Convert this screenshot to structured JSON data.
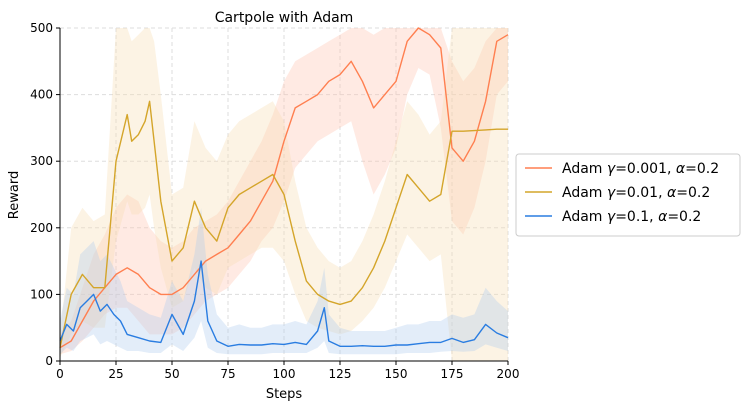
{
  "chart_data": {
    "type": "line",
    "title": "Cartpole with Adam",
    "xlabel": "Steps",
    "ylabel": "Reward",
    "xlim": [
      0,
      200
    ],
    "ylim": [
      0,
      500
    ],
    "xticks": [
      "0",
      "25",
      "50",
      "75",
      "100",
      "125",
      "150",
      "175",
      "200"
    ],
    "yticks": [
      "0",
      "100",
      "200",
      "300",
      "400",
      "500"
    ],
    "grid": true,
    "legend_position": "right-outside",
    "series": [
      {
        "name": "Adam γ=0.001, α=0.2",
        "legend": {
          "prefix": "Adam ",
          "g": "γ",
          "gv": "=0.001, ",
          "a": "α",
          "av": "=0.2"
        },
        "color": "#ff7f50",
        "band_color": "#ffc2b0",
        "band_opacity": 0.35,
        "x": [
          0,
          5,
          10,
          15,
          20,
          25,
          30,
          35,
          40,
          45,
          50,
          55,
          60,
          65,
          70,
          75,
          80,
          85,
          90,
          95,
          100,
          105,
          110,
          115,
          120,
          125,
          130,
          135,
          140,
          145,
          150,
          155,
          160,
          165,
          170,
          175,
          180,
          185,
          190,
          195,
          200
        ],
        "y": [
          20,
          30,
          60,
          90,
          110,
          130,
          140,
          130,
          110,
          100,
          100,
          110,
          130,
          150,
          160,
          170,
          190,
          210,
          240,
          270,
          330,
          380,
          390,
          400,
          420,
          430,
          450,
          420,
          380,
          400,
          420,
          480,
          500,
          490,
          470,
          320,
          300,
          330,
          390,
          480,
          490
        ],
        "lower": [
          10,
          15,
          30,
          50,
          70,
          80,
          80,
          60,
          40,
          40,
          40,
          50,
          70,
          90,
          100,
          110,
          130,
          150,
          180,
          200,
          240,
          290,
          310,
          330,
          340,
          350,
          360,
          300,
          250,
          280,
          320,
          400,
          440,
          430,
          350,
          210,
          190,
          230,
          300,
          400,
          420
        ],
        "upper": [
          40,
          60,
          110,
          160,
          190,
          230,
          250,
          240,
          200,
          180,
          170,
          180,
          200,
          210,
          220,
          240,
          270,
          300,
          330,
          370,
          420,
          450,
          460,
          470,
          480,
          490,
          500,
          500,
          490,
          500,
          500,
          500,
          500,
          500,
          500,
          450,
          420,
          440,
          480,
          500,
          500
        ]
      },
      {
        "name": "Adam γ=0.01, α=0.2",
        "legend": {
          "prefix": "Adam ",
          "g": "γ",
          "gv": "=0.01, ",
          "a": "α",
          "av": "=0.2"
        },
        "color": "#d4a52a",
        "band_color": "#f5deb3",
        "band_opacity": 0.35,
        "x": [
          0,
          5,
          10,
          15,
          20,
          25,
          30,
          32,
          35,
          38,
          40,
          42,
          45,
          50,
          55,
          60,
          65,
          70,
          75,
          80,
          85,
          90,
          95,
          100,
          105,
          110,
          115,
          120,
          125,
          130,
          135,
          140,
          145,
          150,
          155,
          160,
          165,
          170,
          175,
          180,
          185,
          190,
          195,
          200
        ],
        "y": [
          20,
          100,
          130,
          110,
          110,
          300,
          370,
          330,
          340,
          360,
          390,
          330,
          240,
          150,
          170,
          240,
          200,
          180,
          230,
          250,
          260,
          270,
          280,
          250,
          180,
          120,
          100,
          90,
          85,
          90,
          110,
          140,
          180,
          230,
          280,
          260,
          240,
          250,
          345,
          345,
          346,
          347,
          348,
          348
        ],
        "lower": [
          5,
          40,
          60,
          50,
          50,
          180,
          240,
          220,
          220,
          230,
          250,
          200,
          140,
          80,
          90,
          140,
          110,
          100,
          140,
          150,
          160,
          170,
          170,
          150,
          100,
          60,
          50,
          45,
          40,
          45,
          60,
          80,
          110,
          150,
          190,
          170,
          150,
          160,
          0,
          0,
          0,
          0,
          0,
          0
        ],
        "upper": [
          40,
          200,
          230,
          210,
          220,
          500,
          500,
          480,
          490,
          500,
          500,
          480,
          400,
          250,
          260,
          360,
          320,
          300,
          340,
          360,
          370,
          380,
          390,
          360,
          270,
          200,
          170,
          150,
          140,
          150,
          180,
          220,
          270,
          330,
          390,
          370,
          340,
          360,
          500,
          500,
          500,
          500,
          500,
          500
        ]
      },
      {
        "name": "Adam γ=0.1, α=0.2",
        "legend": {
          "prefix": "Adam ",
          "g": "γ",
          "gv": "=0.1, ",
          "a": "α",
          "av": "=0.2"
        },
        "color": "#2a7de1",
        "band_color": "#b0ccee",
        "band_opacity": 0.35,
        "x": [
          0,
          3,
          6,
          9,
          12,
          15,
          18,
          21,
          24,
          27,
          30,
          35,
          40,
          45,
          50,
          55,
          60,
          63,
          66,
          70,
          75,
          80,
          85,
          90,
          95,
          100,
          105,
          110,
          115,
          118,
          120,
          125,
          130,
          135,
          140,
          145,
          150,
          155,
          160,
          165,
          170,
          175,
          180,
          185,
          190,
          195,
          200
        ],
        "y": [
          30,
          55,
          45,
          80,
          90,
          100,
          75,
          85,
          70,
          60,
          40,
          35,
          30,
          28,
          70,
          40,
          90,
          150,
          60,
          30,
          22,
          25,
          24,
          24,
          26,
          25,
          28,
          25,
          45,
          80,
          30,
          22,
          22,
          23,
          22,
          22,
          24,
          24,
          26,
          28,
          28,
          34,
          28,
          32,
          55,
          42,
          35
        ],
        "lower": [
          10,
          20,
          15,
          30,
          35,
          40,
          25,
          30,
          25,
          20,
          15,
          15,
          12,
          12,
          25,
          15,
          35,
          60,
          20,
          12,
          10,
          10,
          10,
          10,
          12,
          12,
          12,
          12,
          20,
          30,
          12,
          10,
          10,
          10,
          10,
          10,
          10,
          12,
          12,
          12,
          14,
          15,
          14,
          15,
          25,
          20,
          15
        ],
        "upper": [
          60,
          110,
          100,
          160,
          170,
          180,
          150,
          160,
          140,
          120,
          90,
          80,
          70,
          65,
          120,
          90,
          160,
          230,
          130,
          70,
          50,
          55,
          50,
          50,
          55,
          55,
          60,
          55,
          90,
          140,
          70,
          50,
          45,
          45,
          45,
          45,
          50,
          55,
          55,
          60,
          60,
          70,
          65,
          70,
          110,
          90,
          75
        ]
      }
    ]
  }
}
